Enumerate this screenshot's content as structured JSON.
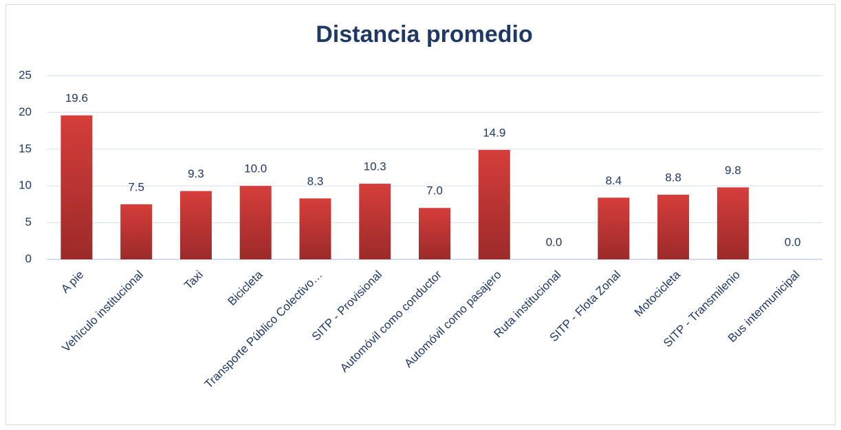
{
  "chart_data": {
    "type": "bar",
    "title": "Distancia promedio",
    "categories": [
      "A pie",
      "Vehículo institucional",
      "Taxi",
      "Bicicleta",
      "Transporte Público Colectivo…",
      "SITP - Provisional",
      "Automóvil como conductor",
      "Automóvil como pasajero",
      "Ruta institucional",
      "SITP - Flota Zonal",
      "Motocicleta",
      "SITP - Transmilenio",
      "Bus intermunicipal"
    ],
    "values": [
      19.6,
      7.5,
      9.3,
      10,
      8.3,
      10.3,
      7,
      14.9,
      0,
      8.4,
      8.8,
      9.8,
      0
    ],
    "value_labels": [
      "19.6",
      "7.5",
      "9.3",
      "10.0",
      "8.3",
      "10.3",
      "7.0",
      "14.9",
      "0.0",
      "8.4",
      "8.8",
      "9.8",
      "0.0"
    ],
    "color": "#d53e3b",
    "ylim": [
      0,
      25
    ],
    "yticks": [
      0,
      5,
      10,
      15,
      20,
      25
    ],
    "grid": true
  }
}
